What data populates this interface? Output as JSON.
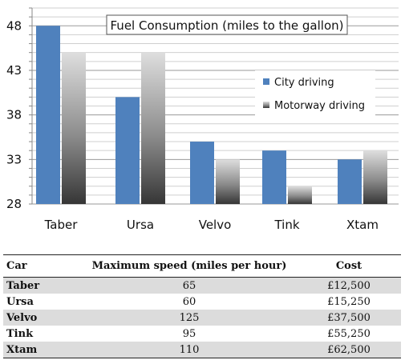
{
  "chart_data": {
    "type": "bar",
    "title": "Fuel Consumption (miles to the gallon)",
    "categories": [
      "Taber",
      "Ursa",
      "Velvo",
      "Tink",
      "Xtam"
    ],
    "series": [
      {
        "name": "City driving",
        "values": [
          48,
          40,
          35,
          34,
          33
        ]
      },
      {
        "name": "Motorway driving",
        "values": [
          45,
          45,
          33,
          30,
          34
        ]
      }
    ],
    "yticks": [
      28,
      33,
      38,
      43,
      48
    ],
    "ylim": [
      28,
      50
    ],
    "grid": true,
    "legend_position": "right",
    "colors": {
      "city": "#4f81bd",
      "motorway_light": "#dcdcdc",
      "motorway_dark": "#3c3c3c"
    }
  },
  "table": {
    "headers": [
      "Car",
      "Maximum speed (miles per hour)",
      "Cost"
    ],
    "rows": [
      {
        "car": "Taber",
        "speed": "65",
        "cost": "£12,500"
      },
      {
        "car": "Ursa",
        "speed": "60",
        "cost": "£15,250"
      },
      {
        "car": "Velvo",
        "speed": "125",
        "cost": "£37,500"
      },
      {
        "car": "Tink",
        "speed": "95",
        "cost": "£55,250"
      },
      {
        "car": "Xtam",
        "speed": "110",
        "cost": "£62,500"
      }
    ]
  }
}
